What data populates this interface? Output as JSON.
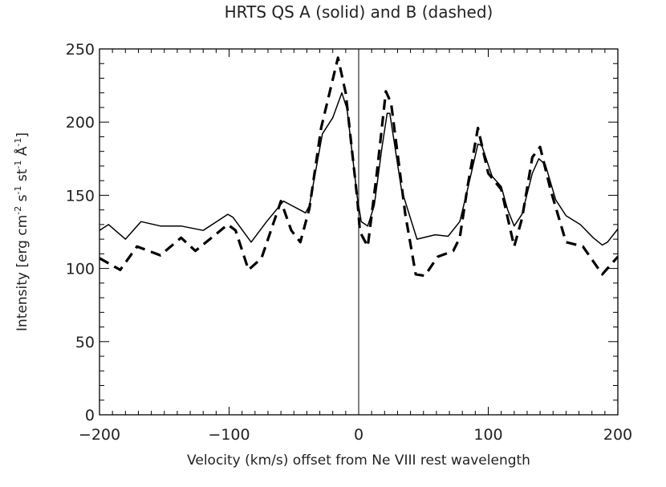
{
  "chart_data": {
    "type": "line",
    "title": "HRTS QS A (solid) and B (dashed)",
    "xlabel": "Velocity (km/s) offset from Ne VIII rest wavelength",
    "ylabel_parts": [
      "Intensity [erg cm",
      "-2",
      " s",
      "-1",
      " st",
      "-1",
      " Å",
      "-1",
      "]"
    ],
    "xlim": [
      -200,
      200
    ],
    "ylim": [
      0,
      250
    ],
    "xticks": [
      -200,
      -100,
      0,
      100,
      200
    ],
    "yticks": [
      0,
      50,
      100,
      150,
      200,
      250
    ],
    "xtick_labels": [
      "−200",
      "−100",
      "0",
      "100",
      "200"
    ],
    "ytick_labels": [
      "0",
      "50",
      "100",
      "150",
      "200",
      "250"
    ],
    "vertical_line_x": 0,
    "series": [
      {
        "name": "A",
        "style": "solid",
        "x": [
          -200,
          -193,
          -180,
          -168,
          -153,
          -137,
          -120,
          -101,
          -97,
          -83,
          -71,
          -58,
          -41,
          -38,
          -28,
          -20,
          -13,
          -9,
          -1,
          2,
          7,
          12,
          18,
          22,
          24,
          33,
          45,
          59,
          69,
          78,
          84,
          92,
          95,
          103,
          110,
          115,
          120,
          126,
          134,
          139,
          144,
          152,
          160,
          171,
          181,
          188,
          192,
          200
        ],
        "y": [
          126,
          130,
          120,
          132,
          129,
          129,
          126,
          137,
          135,
          118,
          132,
          146,
          138,
          143,
          192,
          203,
          220,
          209,
          148,
          132,
          129,
          143,
          183,
          206,
          206,
          154,
          120,
          123,
          122,
          132,
          154,
          185,
          184,
          163,
          156,
          140,
          129,
          137,
          165,
          175,
          171,
          147,
          136,
          130,
          121,
          116,
          118,
          127
        ]
      },
      {
        "name": "B",
        "style": "dashed",
        "x": [
          -200,
          -184,
          -171,
          -153,
          -137,
          -126,
          -101,
          -95,
          -85,
          -75,
          -60,
          -52,
          -45,
          -38,
          -29,
          -16,
          -10,
          -1,
          1,
          7,
          14,
          21,
          25,
          36,
          44,
          51,
          61,
          73,
          78,
          84,
          92,
          100,
          110,
          120,
          126,
          134,
          140,
          148,
          160,
          173,
          188,
          200
        ],
        "y": [
          107,
          99,
          115,
          109,
          121,
          112,
          130,
          126,
          99,
          107,
          146,
          126,
          118,
          141,
          196,
          244,
          220,
          147,
          125,
          115,
          165,
          221,
          213,
          137,
          96,
          95,
          108,
          112,
          121,
          156,
          196,
          165,
          154,
          115,
          134,
          176,
          183,
          154,
          118,
          115,
          96,
          108
        ]
      }
    ]
  }
}
